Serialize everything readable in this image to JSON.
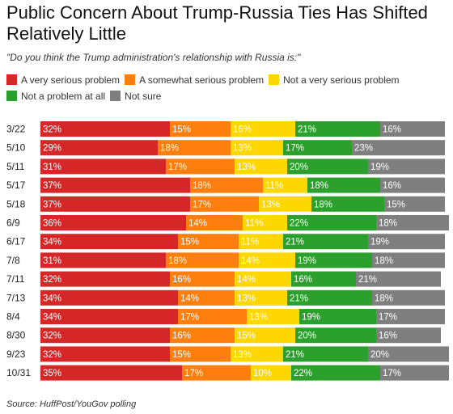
{
  "chart_data": {
    "type": "bar",
    "orientation": "horizontal",
    "stacked": true,
    "title": "Public Concern About Trump-Russia Ties Has Shifted Relatively Little",
    "subtitle": "\"Do you think the Trump administration's relationship with Russia is:\"",
    "source": "Source: HuffPost/YouGov polling",
    "categories": [
      "3/22",
      "5/10",
      "5/11",
      "5/17",
      "5/18",
      "6/9",
      "6/17",
      "7/8",
      "7/11",
      "7/13",
      "8/4",
      "8/30",
      "9/23",
      "10/31"
    ],
    "series": [
      {
        "name": "A very serious problem",
        "color": "#d62728",
        "values": [
          32,
          29,
          31,
          37,
          37,
          36,
          34,
          31,
          32,
          34,
          34,
          32,
          32,
          35
        ]
      },
      {
        "name": "A somewhat serious problem",
        "color": "#ff7f0e",
        "values": [
          15,
          18,
          17,
          18,
          17,
          14,
          15,
          18,
          16,
          14,
          17,
          16,
          15,
          17
        ]
      },
      {
        "name": "Not a very serious problem",
        "color": "#ffd700",
        "values": [
          16,
          13,
          13,
          11,
          13,
          11,
          11,
          14,
          14,
          13,
          13,
          15,
          13,
          10
        ]
      },
      {
        "name": "Not a problem at all",
        "color": "#2ca02c",
        "values": [
          21,
          17,
          20,
          18,
          18,
          22,
          21,
          19,
          16,
          21,
          19,
          20,
          21,
          22
        ]
      },
      {
        "name": "Not sure",
        "color": "#7f7f7f",
        "values": [
          16,
          23,
          19,
          16,
          15,
          18,
          19,
          18,
          21,
          18,
          17,
          16,
          20,
          17
        ]
      }
    ],
    "value_suffix": "%",
    "legend_position": "top-left",
    "grid": false
  }
}
